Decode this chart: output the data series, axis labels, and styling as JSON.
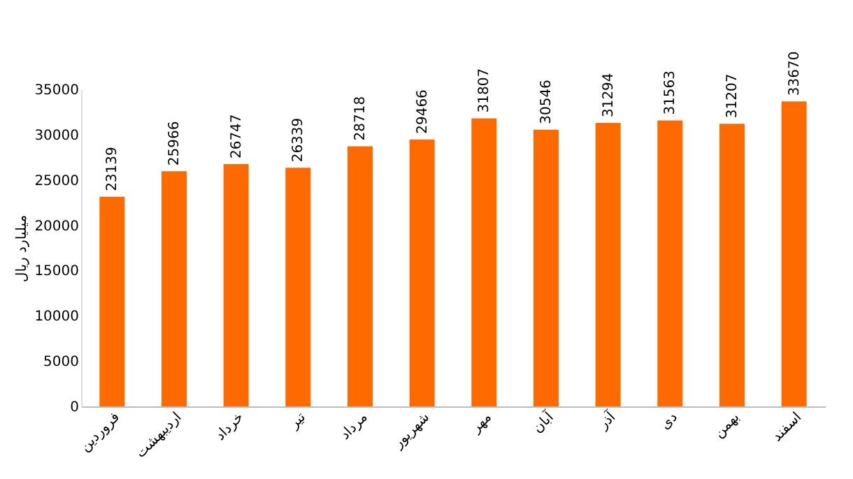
{
  "chart_data": {
    "type": "bar",
    "ylabel": "میلیارد ریال",
    "categories": [
      "فروردین",
      "اردیبهشت",
      "خرداد",
      "تیر",
      "مرداد",
      "شهریور",
      "مهر",
      "آبان",
      "آذر",
      "دی",
      "بهمن",
      "اسفند"
    ],
    "values": [
      23139,
      25966,
      26747,
      26339,
      28718,
      29466,
      31807,
      30546,
      31294,
      31563,
      31207,
      33670
    ],
    "color": "#ff6a00",
    "ylim": [
      0,
      35000
    ],
    "yticks": [
      0,
      5000,
      10000,
      15000,
      20000,
      25000,
      30000,
      35000
    ],
    "data_labels": true,
    "grid": false
  }
}
